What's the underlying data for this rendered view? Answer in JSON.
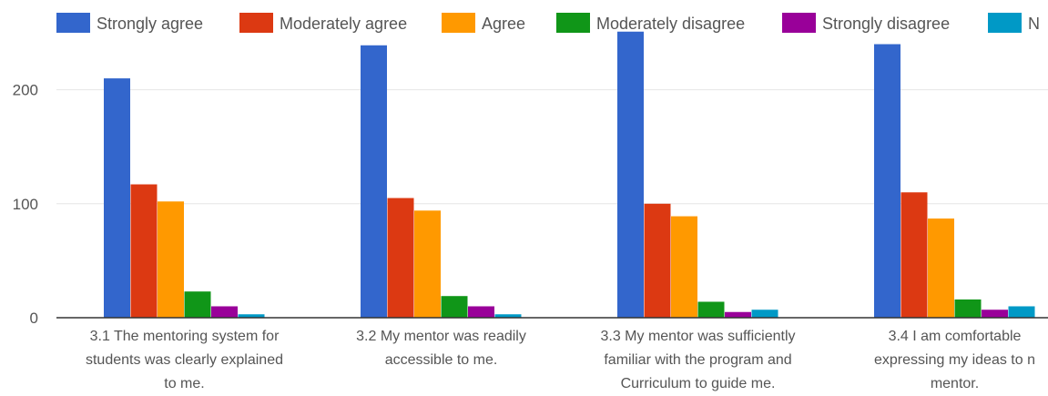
{
  "chart_data": {
    "type": "bar",
    "categories": [
      [
        "3.1 The mentoring system for",
        "students was clearly explained",
        "to me."
      ],
      [
        "3.2 My mentor was readily",
        "accessible to me."
      ],
      [
        "3.3 My mentor was sufficiently",
        "familiar with the program and",
        "Curriculum to guide me."
      ],
      [
        "3.4 I am comfortable",
        "expressing my ideas to n",
        "mentor."
      ]
    ],
    "series": [
      {
        "name": "Strongly agree",
        "color": "#3366cc",
        "values": [
          210,
          239,
          251,
          240
        ]
      },
      {
        "name": "Moderately agree",
        "color": "#dc3912",
        "values": [
          117,
          105,
          100,
          110
        ]
      },
      {
        "name": "Agree",
        "color": "#ff9900",
        "values": [
          102,
          94,
          89,
          87
        ]
      },
      {
        "name": "Moderately disagree",
        "color": "#109618",
        "values": [
          23,
          19,
          14,
          16
        ]
      },
      {
        "name": "Strongly disagree",
        "color": "#990099",
        "values": [
          10,
          10,
          5,
          7
        ]
      },
      {
        "name": "N",
        "color": "#0099c6",
        "values": [
          3,
          3,
          7,
          10
        ]
      }
    ],
    "yticks": [
      0,
      100,
      200
    ],
    "ylim": [
      0,
      250
    ],
    "grid": true,
    "legend_position": "top"
  }
}
